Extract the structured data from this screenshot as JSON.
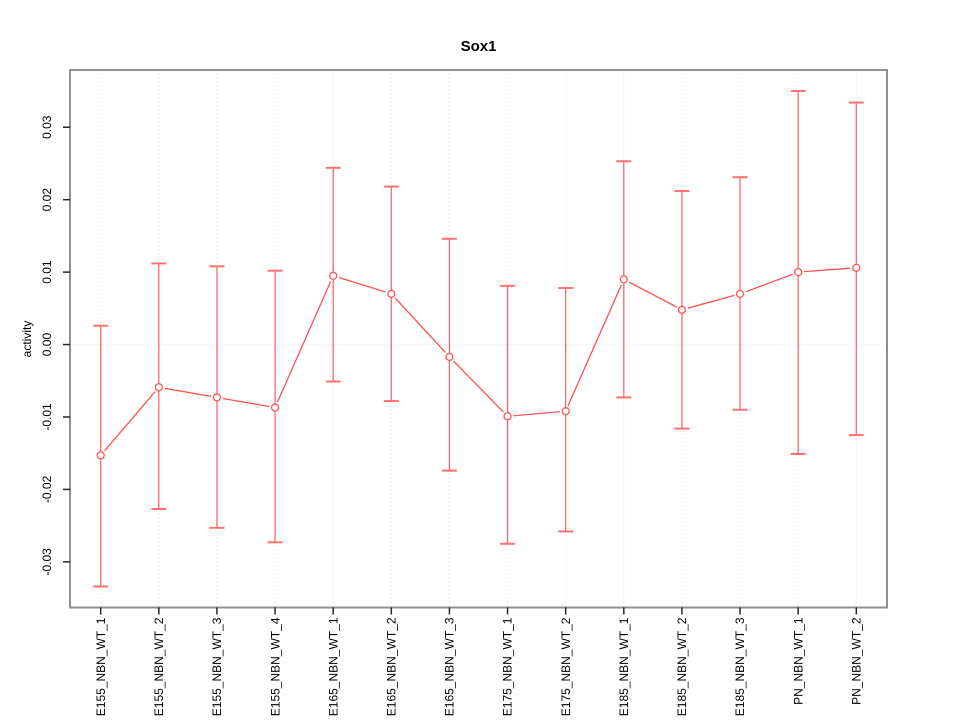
{
  "chart_data": {
    "type": "line",
    "subtype": "points-with-error-bars",
    "title": "Sox1",
    "ylabel": "activity",
    "xlabel": "",
    "legend": "none",
    "grid": {
      "vertical_dotted_per_category": true,
      "horizontal_zero_line": true
    },
    "categories": [
      "E155_NBN_WT_1",
      "E155_NBN_WT_2",
      "E155_NBN_WT_3",
      "E155_NBN_WT_4",
      "E165_NBN_WT_1",
      "E165_NBN_WT_2",
      "E165_NBN_WT_3",
      "E175_NBN_WT_1",
      "E175_NBN_WT_2",
      "E185_NBN_WT_1",
      "E185_NBN_WT_2",
      "E185_NBN_WT_3",
      "PN_NBN_WT_1",
      "PN_NBN_WT_2"
    ],
    "series": [
      {
        "name": "activity",
        "marker": "open-circle",
        "values": [
          -0.0153,
          -0.0059,
          -0.0073,
          -0.0087,
          0.0095,
          0.007,
          -0.0017,
          -0.0099,
          -0.0092,
          0.009,
          0.0048,
          0.007,
          0.01,
          0.0106
        ],
        "upper": [
          0.0026,
          0.0112,
          0.0108,
          0.0102,
          0.0244,
          0.0218,
          0.0146,
          0.0081,
          0.0078,
          0.0253,
          0.0212,
          0.0231,
          0.035,
          0.0334
        ],
        "lower": [
          -0.0334,
          -0.0227,
          -0.0253,
          -0.0273,
          -0.0051,
          -0.0078,
          -0.0174,
          -0.0275,
          -0.0258,
          -0.0073,
          -0.0116,
          -0.009,
          -0.0151,
          -0.0125
        ]
      }
    ],
    "ylim": [
      -0.0363,
      0.0379
    ],
    "yticks": {
      "values": [
        0.03,
        0.02,
        0.01,
        0.0,
        -0.01,
        -0.02,
        -0.03
      ],
      "labels": [
        "0.03",
        "0.02",
        "0.01",
        "0.00",
        "-0.01",
        "-0.02",
        "-0.03"
      ]
    },
    "colors": {
      "series": "#ff5252",
      "error_bar": "#ff5c5c",
      "error_cap": "#ff7070",
      "grid": "#dcdcdc",
      "zero_line": "#e2e2e2",
      "box": "#8f8f8f",
      "tick": "#262626",
      "text": "#000000",
      "background": "#ffffff"
    }
  }
}
